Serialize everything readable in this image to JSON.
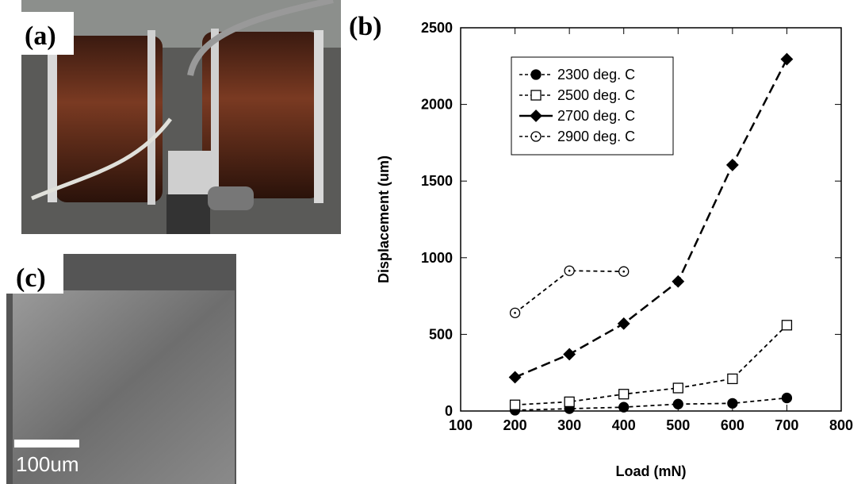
{
  "panels": {
    "a_label": "(a)",
    "c_label": "(c)",
    "scale_bar": "100um"
  },
  "chart_data": {
    "type": "line",
    "title": "(b)",
    "x_label": "Load (mN)",
    "y_label": "Displacement (um)",
    "x": [
      200,
      300,
      400,
      500,
      600,
      700
    ],
    "series": [
      {
        "name": "2300 deg. C",
        "color": "#000000",
        "marker": "circle",
        "fill": "filled",
        "dash": "short",
        "values": [
          5,
          15,
          25,
          45,
          50,
          85
        ]
      },
      {
        "name": "2500 deg. C",
        "color": "#000000",
        "marker": "square",
        "fill": "open",
        "dash": "short",
        "values": [
          40,
          60,
          110,
          150,
          210,
          560
        ]
      },
      {
        "name": "2700 deg. C",
        "color": "#000000",
        "marker": "diamond",
        "fill": "filled",
        "dash": "long",
        "values": [
          220,
          370,
          570,
          845,
          1605,
          2295
        ]
      },
      {
        "name": "2900 deg. C",
        "color": "#000000",
        "marker": "dotted-circle",
        "fill": "open",
        "dash": "short",
        "values": [
          640,
          915,
          910,
          null,
          null,
          null
        ]
      }
    ],
    "xlim": [
      100,
      800
    ],
    "xticks": [
      100,
      200,
      300,
      400,
      500,
      600,
      700,
      800
    ],
    "ylim": [
      0,
      2500
    ],
    "yticks": [
      0,
      500,
      1000,
      1500,
      2000,
      2500
    ],
    "grid": false,
    "legend": "upper left"
  }
}
